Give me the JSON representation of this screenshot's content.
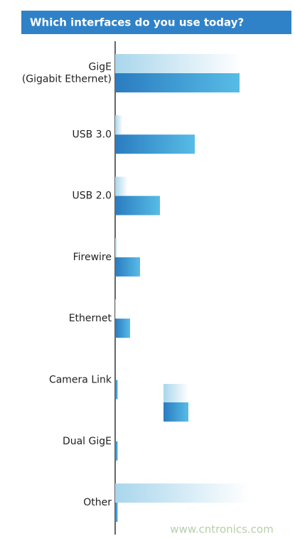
{
  "chart_data": {
    "type": "bar",
    "orientation": "horizontal",
    "title": "Which interfaces do you use today?",
    "categories": [
      "GigE\n(Gigabit Ethernet)",
      "USB 3.0",
      "USB 2.0",
      "Firewire",
      "Ethernet",
      "Camera Link",
      "Dual GigE",
      "Other"
    ],
    "series": [
      {
        "color": "#a9d6ec",
        "values": [
          51,
          3,
          5,
          1,
          0.5,
          0,
          0,
          54
        ]
      },
      {
        "color": "#2f86c6",
        "values": [
          50,
          32,
          18,
          10,
          6,
          1,
          1,
          1
        ]
      }
    ],
    "watermark": "www.cntronics.com"
  }
}
